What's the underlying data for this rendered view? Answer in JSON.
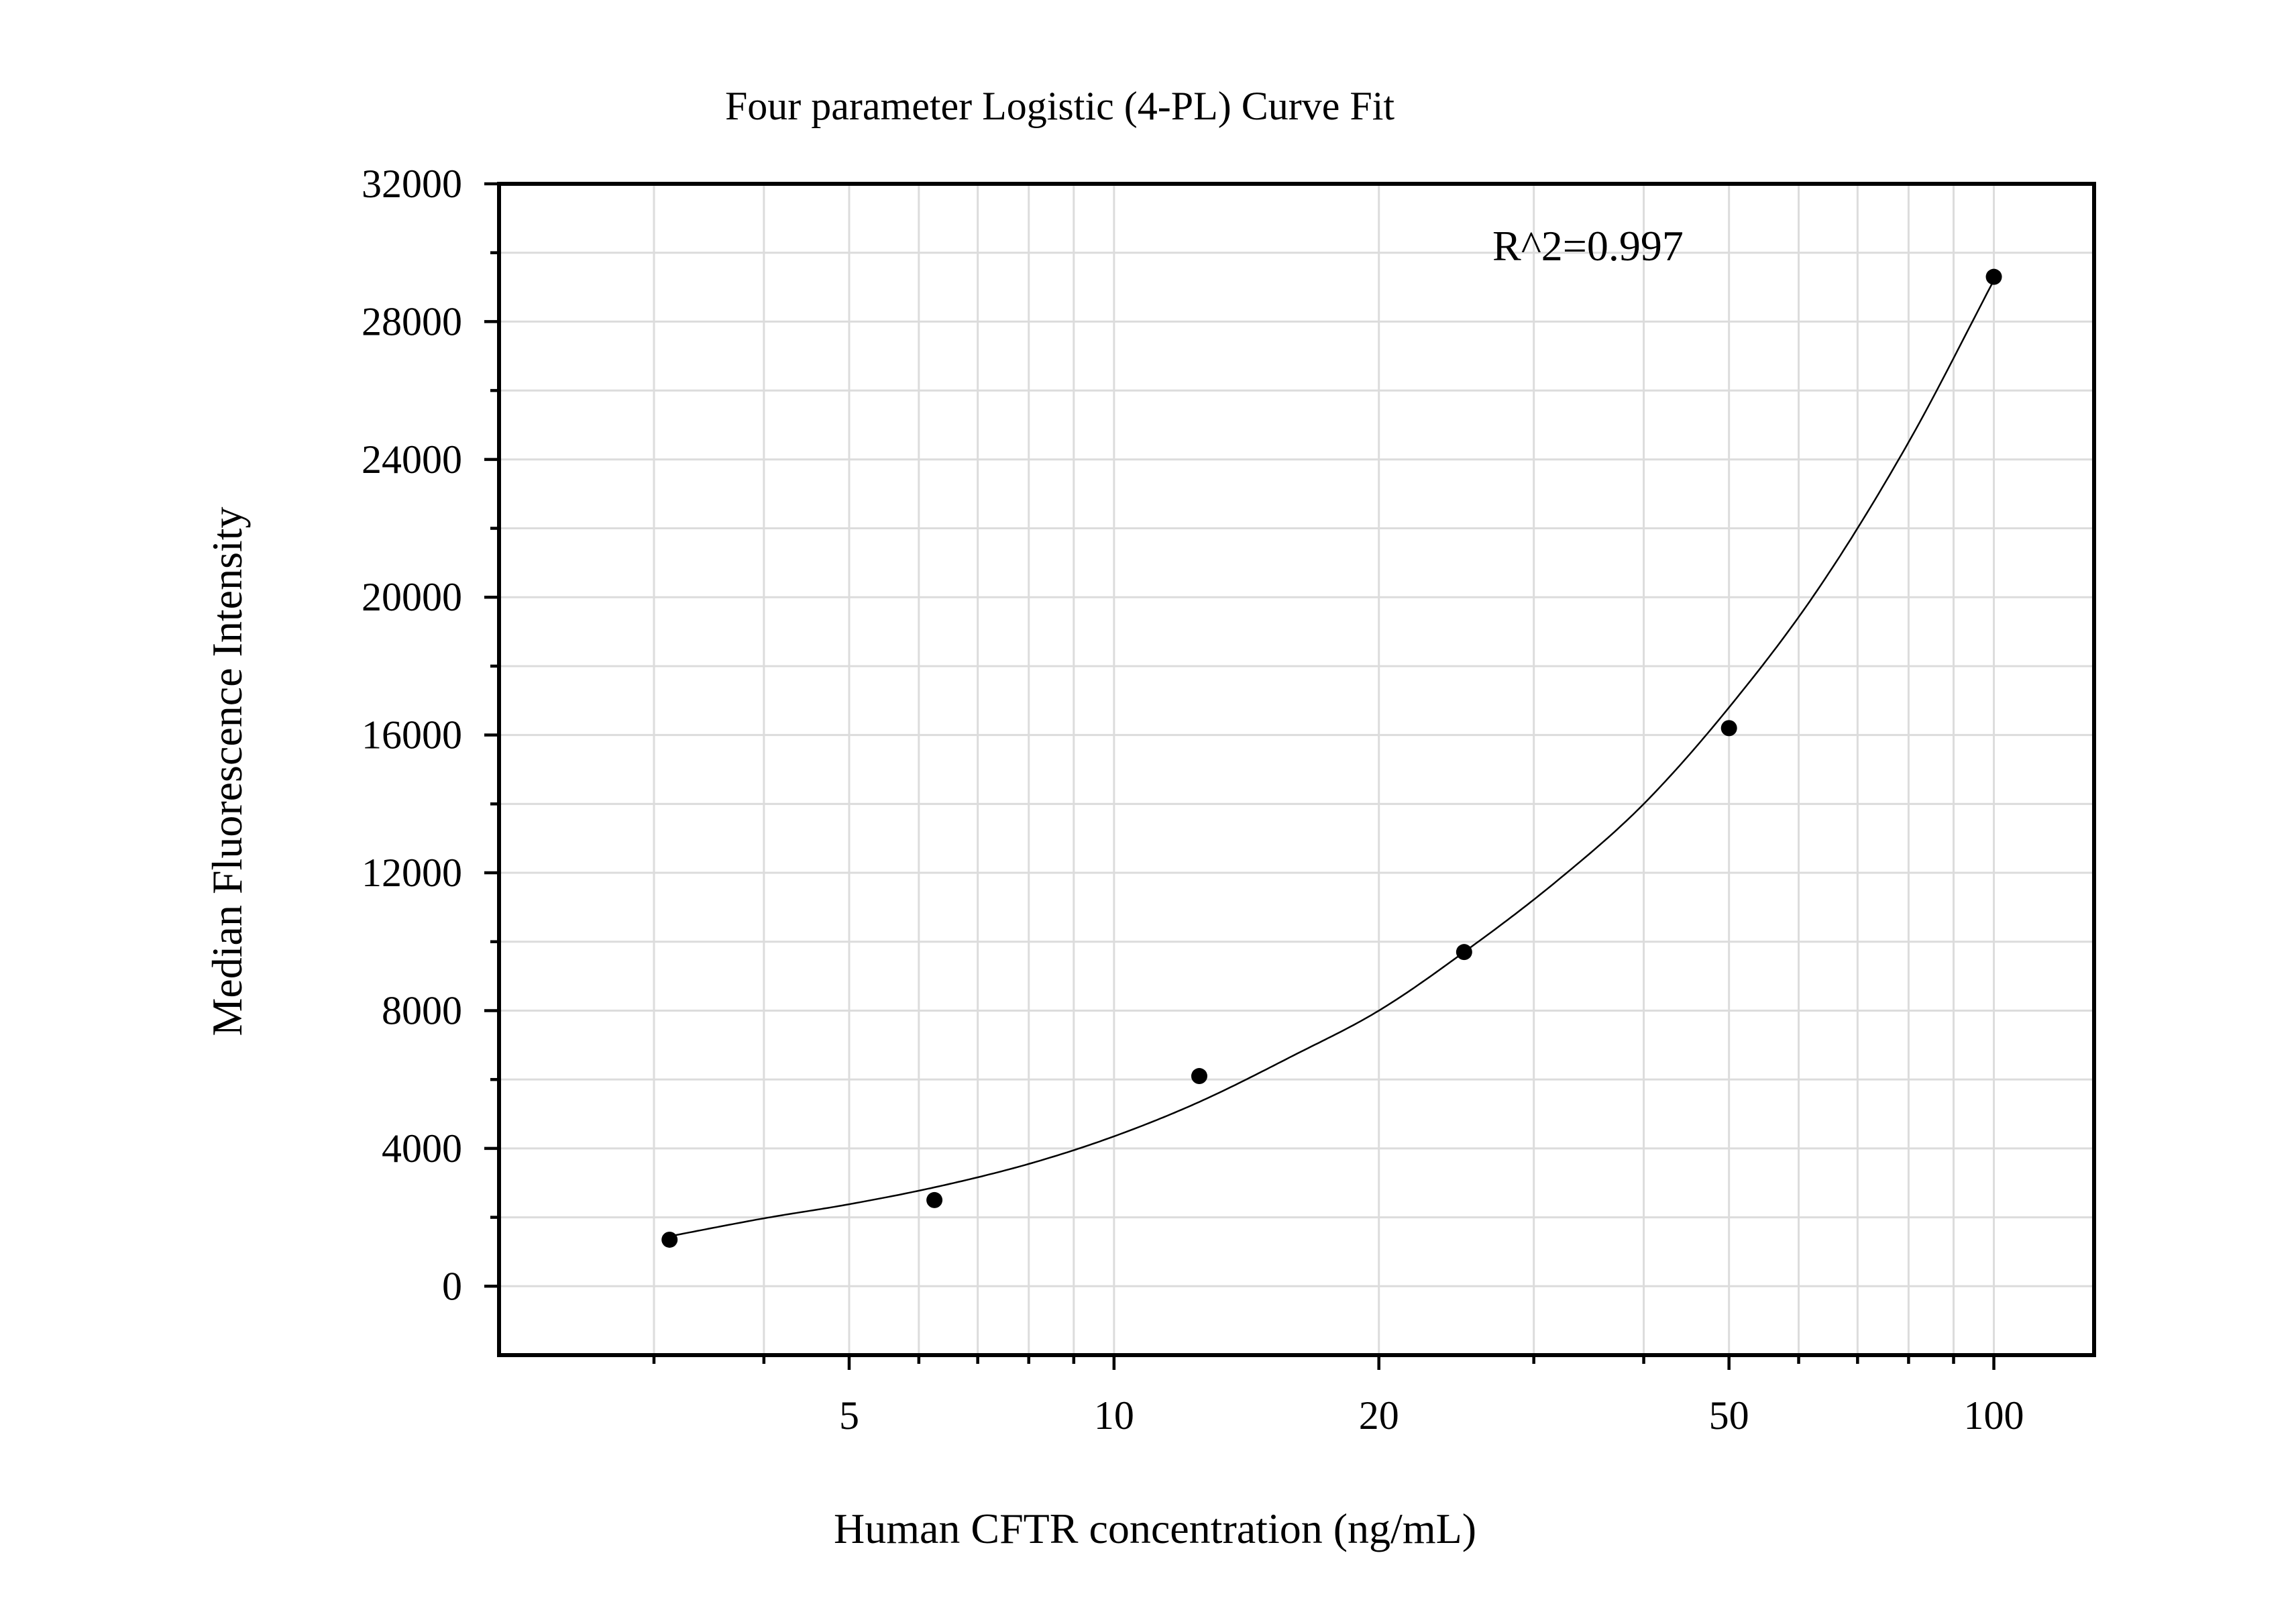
{
  "chart_data": {
    "type": "scatter",
    "title": "Four parameter Logistic (4-PL) Curve Fit",
    "xlabel": "Human CFTR concentration (ng/mL)",
    "ylabel": "Median Fluorescence Intensity",
    "x_scale": "log",
    "xlim": [
      2.0,
      130
    ],
    "ylim": [
      -2000,
      32000
    ],
    "x_ticks": [
      5,
      10,
      20,
      50,
      100
    ],
    "x_tick_labels": [
      "5",
      "10",
      "20",
      "50",
      "100"
    ],
    "y_ticks": [
      0,
      4000,
      8000,
      12000,
      16000,
      20000,
      24000,
      28000,
      32000
    ],
    "y_tick_labels": [
      "0",
      "4000",
      "8000",
      "12000",
      "16000",
      "20000",
      "24000",
      "28000",
      "32000"
    ],
    "grid": true,
    "points": [
      {
        "x": 3.125,
        "y": 1350
      },
      {
        "x": 6.25,
        "y": 2500
      },
      {
        "x": 12.5,
        "y": 6100
      },
      {
        "x": 25,
        "y": 9700
      },
      {
        "x": 50,
        "y": 16200
      },
      {
        "x": 100,
        "y": 29300
      }
    ],
    "fit_curve": {
      "x": [
        3.125,
        4,
        5,
        6.25,
        8,
        10,
        12.5,
        16,
        20,
        25,
        32,
        40,
        50,
        63,
        80,
        100
      ],
      "y": [
        1450,
        1970,
        2380,
        2870,
        3550,
        4350,
        5350,
        6700,
        8000,
        9700,
        11800,
        14000,
        16800,
        20200,
        24500,
        29200
      ]
    },
    "annotations": [
      "R^2=0.997"
    ]
  }
}
